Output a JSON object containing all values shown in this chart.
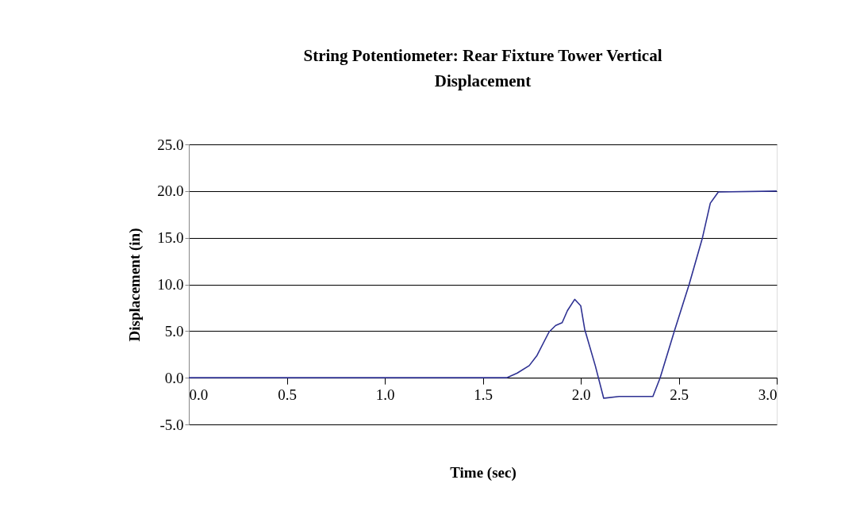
{
  "chart_data": {
    "type": "line",
    "title": [
      "String Potentiometer: Rear Fixture Tower Vertical",
      "Displacement"
    ],
    "xlabel": "Time (sec)",
    "ylabel": "Displacement (in)",
    "x": [
      0.0,
      1.622,
      1.676,
      1.737,
      1.777,
      1.838,
      1.872,
      1.905,
      1.932,
      1.969,
      2.0,
      2.02,
      2.074,
      2.117,
      2.196,
      2.368,
      2.405,
      2.479,
      2.553,
      2.621,
      2.661,
      2.702,
      3.0
    ],
    "series": [
      {
        "color": "#2e3192",
        "values": [
          0.0,
          0.0,
          0.5,
          1.3,
          2.4,
          4.9,
          5.6,
          5.9,
          7.2,
          8.4,
          7.7,
          5.2,
          1.3,
          -2.2,
          -2.0,
          -2.0,
          0.0,
          5.1,
          10.0,
          15.0,
          18.7,
          19.9,
          20.0
        ]
      }
    ],
    "xlim": [
      0.0,
      3.0
    ],
    "xticks": [
      {
        "value": 0.0,
        "label": "0.0"
      },
      {
        "value": 0.5,
        "label": "0.5"
      },
      {
        "value": 1.0,
        "label": "1.0"
      },
      {
        "value": 1.5,
        "label": "1.5"
      },
      {
        "value": 2.0,
        "label": "2.0"
      },
      {
        "value": 2.5,
        "label": "2.5"
      },
      {
        "value": 3.0,
        "label": "3.0"
      }
    ],
    "ylim": [
      -5.0,
      25.0
    ],
    "yticks": [
      {
        "value": -5.0,
        "label": "-5.0"
      },
      {
        "value": 0.0,
        "label": "0.0"
      },
      {
        "value": 5.0,
        "label": "5.0"
      },
      {
        "value": 10.0,
        "label": "10.0"
      },
      {
        "value": 15.0,
        "label": "15.0"
      },
      {
        "value": 20.0,
        "label": "20.0"
      },
      {
        "value": 25.0,
        "label": "25.0"
      }
    ],
    "grid": "y",
    "marker": "none",
    "line_style": "solid"
  }
}
